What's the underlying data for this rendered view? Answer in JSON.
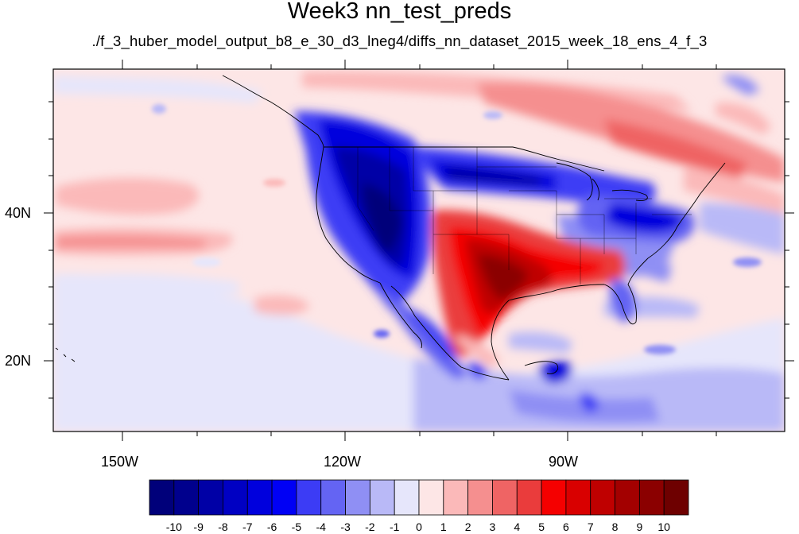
{
  "title": "Week3 nn_test_preds",
  "subtitle": "./f_3_huber_model_output_b8_e_30_d3_lneg4/diffs_nn_dataset_2015_week_18_ens_4_f_3",
  "map": {
    "lon_labels": [
      "150W",
      "120W",
      "90W"
    ],
    "lat_labels": [
      "40N",
      "20N"
    ]
  },
  "colorbar": {
    "labels": [
      "-10",
      "-9",
      "-8",
      "-7",
      "-6",
      "-5",
      "-4",
      "-3",
      "-2",
      "-1",
      "0",
      "1",
      "2",
      "3",
      "4",
      "5",
      "6",
      "7",
      "8",
      "9",
      "10"
    ],
    "colors": [
      "#00007a",
      "#00008d",
      "#0000a6",
      "#0000c3",
      "#0000dd",
      "#0000f5",
      "#3c3cf5",
      "#6464f3",
      "#8f8ff4",
      "#b9b9f7",
      "#e6e6fb",
      "#fde6e6",
      "#fbb9b9",
      "#f58f8f",
      "#ef6464",
      "#ea3c3c",
      "#f50000",
      "#d90000",
      "#bf0000",
      "#a30000",
      "#8b0000",
      "#6e0000"
    ]
  }
}
